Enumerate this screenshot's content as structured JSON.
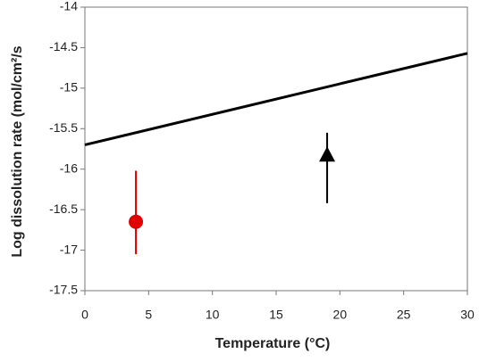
{
  "chart_data": {
    "type": "scatter",
    "x_label": "Temperature (°C)",
    "y_label": "Log dissolution rate (mol/cm²/s",
    "xlim": [
      0,
      30
    ],
    "xticks": [
      0,
      5,
      10,
      15,
      20,
      25,
      30
    ],
    "ylim": [
      -17.5,
      -14
    ],
    "yticks": [
      -17.5,
      -17,
      -16.5,
      -16,
      -15.5,
      -15,
      -14.5,
      -14
    ],
    "series": [
      {
        "style": "line",
        "color": "#000000",
        "x": [
          0,
          30
        ],
        "values": [
          -15.7,
          -14.57
        ]
      },
      {
        "style": "circle",
        "color": "#e00000",
        "x": [
          4
        ],
        "values": [
          -16.65
        ],
        "lower": [
          -17.05
        ],
        "upper": [
          -16.02
        ]
      },
      {
        "style": "triangle",
        "color": "#000000",
        "x": [
          19
        ],
        "values": [
          -15.83
        ],
        "lower": [
          -16.42
        ],
        "upper": [
          -15.55
        ]
      }
    ]
  }
}
